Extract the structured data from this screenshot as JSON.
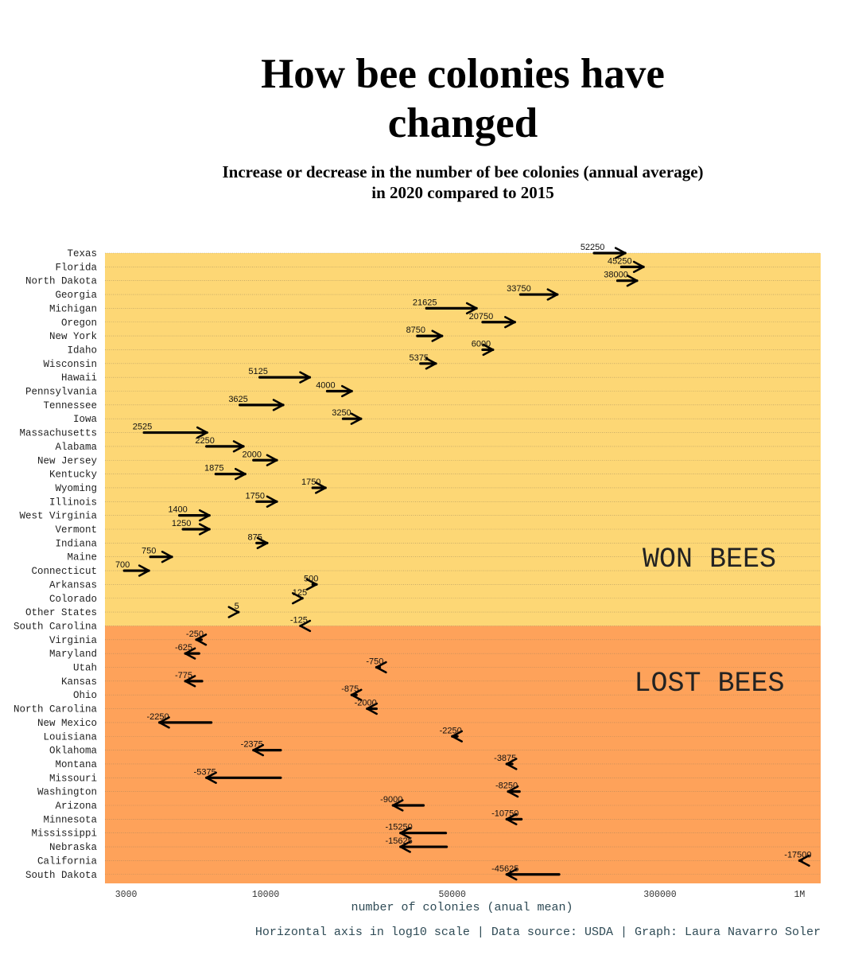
{
  "title_lines": [
    "How bee colonies have",
    "changed"
  ],
  "subtitle_lines": [
    "Increase or decrease in the number of bee colonies (annual average)",
    "in 2020 compared to 2015"
  ],
  "caption": "Horizontal axis in log10 scale | Data source: USDA | Graph: Laura Navarro Soler",
  "colors": {
    "won": "#fdd775",
    "lost": "#fea25a",
    "arrow": "#000000",
    "axis_text": "#2e4a55"
  },
  "chart_data": {
    "type": "arrow",
    "xlabel": "number of colonies (anual mean)",
    "x_scale": "log10",
    "xlim": [
      2500,
      1200000
    ],
    "xticks": [
      3000,
      10000,
      50000,
      300000,
      1000000
    ],
    "xtick_labels": [
      "3000",
      "10000",
      "50000",
      "300000",
      "1M"
    ],
    "regions": [
      {
        "label": "WON BEES",
        "from": "Texas",
        "to": "South Carolina",
        "color": "#fdd775"
      },
      {
        "label": "LOST BEES",
        "from": "South Carolina",
        "to": "South Dakota",
        "color": "#fea25a"
      }
    ],
    "rows": [
      {
        "state": "Texas",
        "from": 170000,
        "to": 222250,
        "change_label": "52250"
      },
      {
        "state": "Florida",
        "from": 215000,
        "to": 260250,
        "change_label": "45250"
      },
      {
        "state": "North Dakota",
        "from": 208000,
        "to": 246000,
        "change_label": "38000"
      },
      {
        "state": "Georgia",
        "from": 90000,
        "to": 123750,
        "change_label": "33750"
      },
      {
        "state": "Michigan",
        "from": 40000,
        "to": 61625,
        "change_label": "21625"
      },
      {
        "state": "Oregon",
        "from": 65000,
        "to": 85750,
        "change_label": "20750"
      },
      {
        "state": "New York",
        "from": 37000,
        "to": 45750,
        "change_label": "8750"
      },
      {
        "state": "Idaho",
        "from": 65000,
        "to": 71000,
        "change_label": "6000"
      },
      {
        "state": "Wisconsin",
        "from": 38000,
        "to": 43375,
        "change_label": "5375"
      },
      {
        "state": "Hawaii",
        "from": 9500,
        "to": 14625,
        "change_label": "5125"
      },
      {
        "state": "Pennsylvania",
        "from": 17000,
        "to": 21000,
        "change_label": "4000"
      },
      {
        "state": "Tennessee",
        "from": 8000,
        "to": 11625,
        "change_label": "3625"
      },
      {
        "state": "Iowa",
        "from": 19500,
        "to": 22750,
        "change_label": "3250"
      },
      {
        "state": "Massachusetts",
        "from": 3500,
        "to": 6025,
        "change_label": "2525"
      },
      {
        "state": "Alabama",
        "from": 6000,
        "to": 8250,
        "change_label": "2250"
      },
      {
        "state": "New Jersey",
        "from": 9000,
        "to": 11000,
        "change_label": "2000"
      },
      {
        "state": "Kentucky",
        "from": 6500,
        "to": 8375,
        "change_label": "1875"
      },
      {
        "state": "Wyoming",
        "from": 15000,
        "to": 16750,
        "change_label": "1750"
      },
      {
        "state": "Illinois",
        "from": 9250,
        "to": 11000,
        "change_label": "1750"
      },
      {
        "state": "West Virginia",
        "from": 4750,
        "to": 6150,
        "change_label": "1400"
      },
      {
        "state": "Vermont",
        "from": 4900,
        "to": 6150,
        "change_label": "1250"
      },
      {
        "state": "Indiana",
        "from": 9250,
        "to": 10125,
        "change_label": "875"
      },
      {
        "state": "Maine",
        "from": 3700,
        "to": 4450,
        "change_label": "750"
      },
      {
        "state": "Connecticut",
        "from": 2950,
        "to": 3650,
        "change_label": "700"
      },
      {
        "state": "Arkansas",
        "from": 15000,
        "to": 15500,
        "change_label": "500"
      },
      {
        "state": "Colorado",
        "from": 13600,
        "to": 13725,
        "change_label": "125"
      },
      {
        "state": "Other States",
        "from": 7900,
        "to": 7905,
        "change_label": "5"
      },
      {
        "state": "South Carolina",
        "from": 13625,
        "to": 13500,
        "change_label": "-125"
      },
      {
        "state": "Virginia",
        "from": 5750,
        "to": 5500,
        "change_label": "-250"
      },
      {
        "state": "Maryland",
        "from": 5625,
        "to": 5000,
        "change_label": "-625"
      },
      {
        "state": "Utah",
        "from": 26750,
        "to": 26000,
        "change_label": "-750"
      },
      {
        "state": "Kansas",
        "from": 5775,
        "to": 5000,
        "change_label": "-775"
      },
      {
        "state": "Ohio",
        "from": 21875,
        "to": 21000,
        "change_label": "-875"
      },
      {
        "state": "North Carolina",
        "from": 26000,
        "to": 24000,
        "change_label": "-2000"
      },
      {
        "state": "New Mexico",
        "from": 6250,
        "to": 4000,
        "change_label": "-2250"
      },
      {
        "state": "Louisiana",
        "from": 52250,
        "to": 50000,
        "change_label": "-2250"
      },
      {
        "state": "Oklahoma",
        "from": 11375,
        "to": 9000,
        "change_label": "-2375"
      },
      {
        "state": "Montana",
        "from": 83875,
        "to": 80000,
        "change_label": "-3875"
      },
      {
        "state": "Missouri",
        "from": 11375,
        "to": 6000,
        "change_label": "-5375"
      },
      {
        "state": "Washington",
        "from": 89250,
        "to": 81000,
        "change_label": "-8250"
      },
      {
        "state": "Arizona",
        "from": 39000,
        "to": 30000,
        "change_label": "-9000"
      },
      {
        "state": "Minnesota",
        "from": 90750,
        "to": 80000,
        "change_label": "-10750"
      },
      {
        "state": "Mississippi",
        "from": 47250,
        "to": 32000,
        "change_label": "-15250"
      },
      {
        "state": "Nebraska",
        "from": 47625,
        "to": 32000,
        "change_label": "-15625"
      },
      {
        "state": "California",
        "from": 1017500,
        "to": 1000000,
        "change_label": "-17500"
      },
      {
        "state": "South Dakota",
        "from": 125625,
        "to": 80000,
        "change_label": "-45625"
      }
    ]
  }
}
